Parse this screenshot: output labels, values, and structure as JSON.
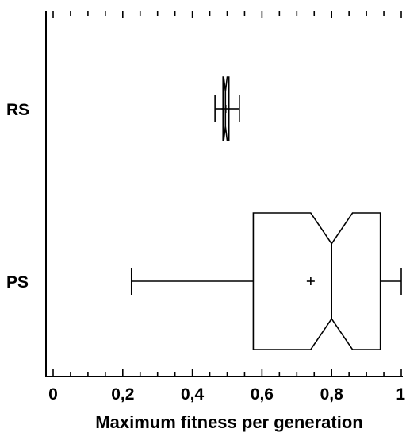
{
  "chart_data": {
    "type": "boxplot",
    "orientation": "horizontal",
    "xlabel": "Maximum fitness per generation",
    "ylabel": "",
    "title": "",
    "xlim": [
      0,
      1
    ],
    "x_ticks": [
      "0",
      "0,2",
      "0,4",
      "0,6",
      "0,8",
      "1"
    ],
    "x_tick_values": [
      0,
      0.2,
      0.4,
      0.6,
      0.8,
      1.0
    ],
    "minor_tick_step": 0.05,
    "notched": true,
    "grid": false,
    "colors": {
      "line": "#000000",
      "background": "#ffffff"
    },
    "series": [
      {
        "name": "RS",
        "whisker_low": 0.465,
        "q1": 0.488,
        "median": 0.495,
        "mean": 0.496,
        "q3": 0.505,
        "whisker_high": 0.535,
        "notch_low": 0.49,
        "notch_high": 0.5
      },
      {
        "name": "PS",
        "whisker_low": 0.225,
        "q1": 0.575,
        "median": 0.8,
        "mean": 0.74,
        "q3": 0.94,
        "whisker_high": 1.0,
        "notch_low": 0.74,
        "notch_high": 0.86
      }
    ]
  }
}
